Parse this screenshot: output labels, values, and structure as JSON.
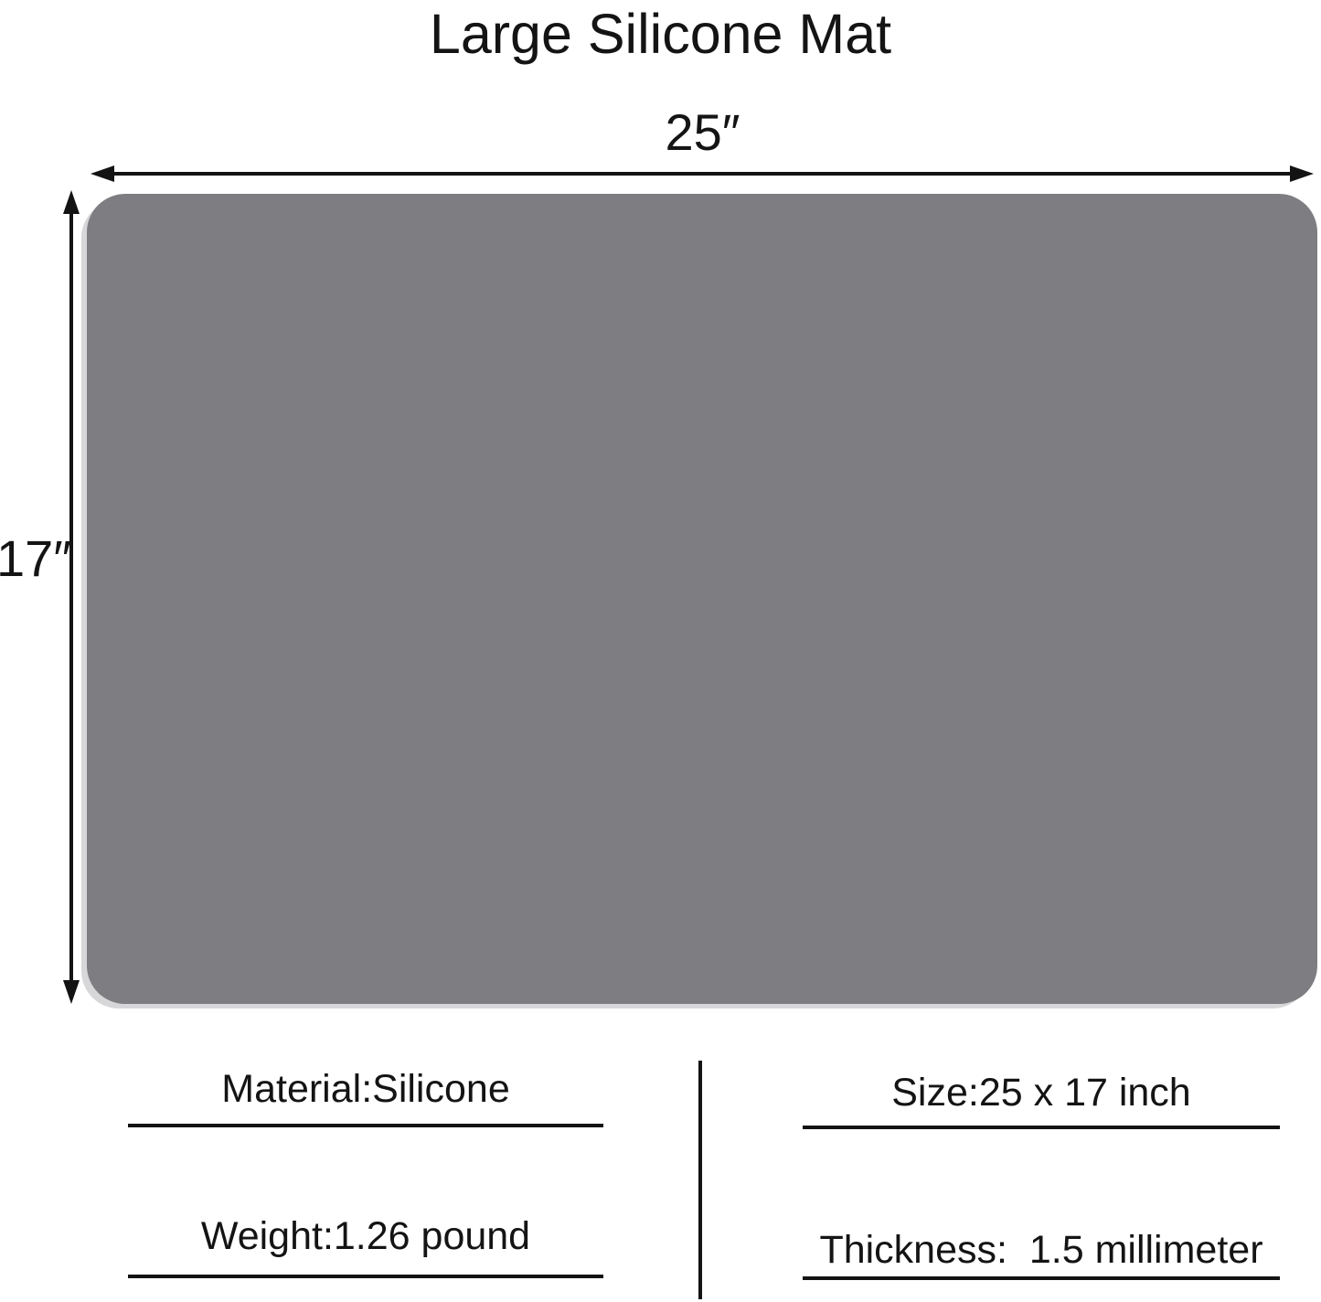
{
  "title": "Large Silicone Mat",
  "diagram": {
    "width_label": "25″",
    "height_label": "17″",
    "mat_color": "#7e7d81"
  },
  "specs": {
    "material": "Material:Silicone",
    "weight": "Weight:1.26 pound",
    "size": "Size:25 x 17 inch",
    "thickness": "Thickness:  1.5 millimeter"
  }
}
